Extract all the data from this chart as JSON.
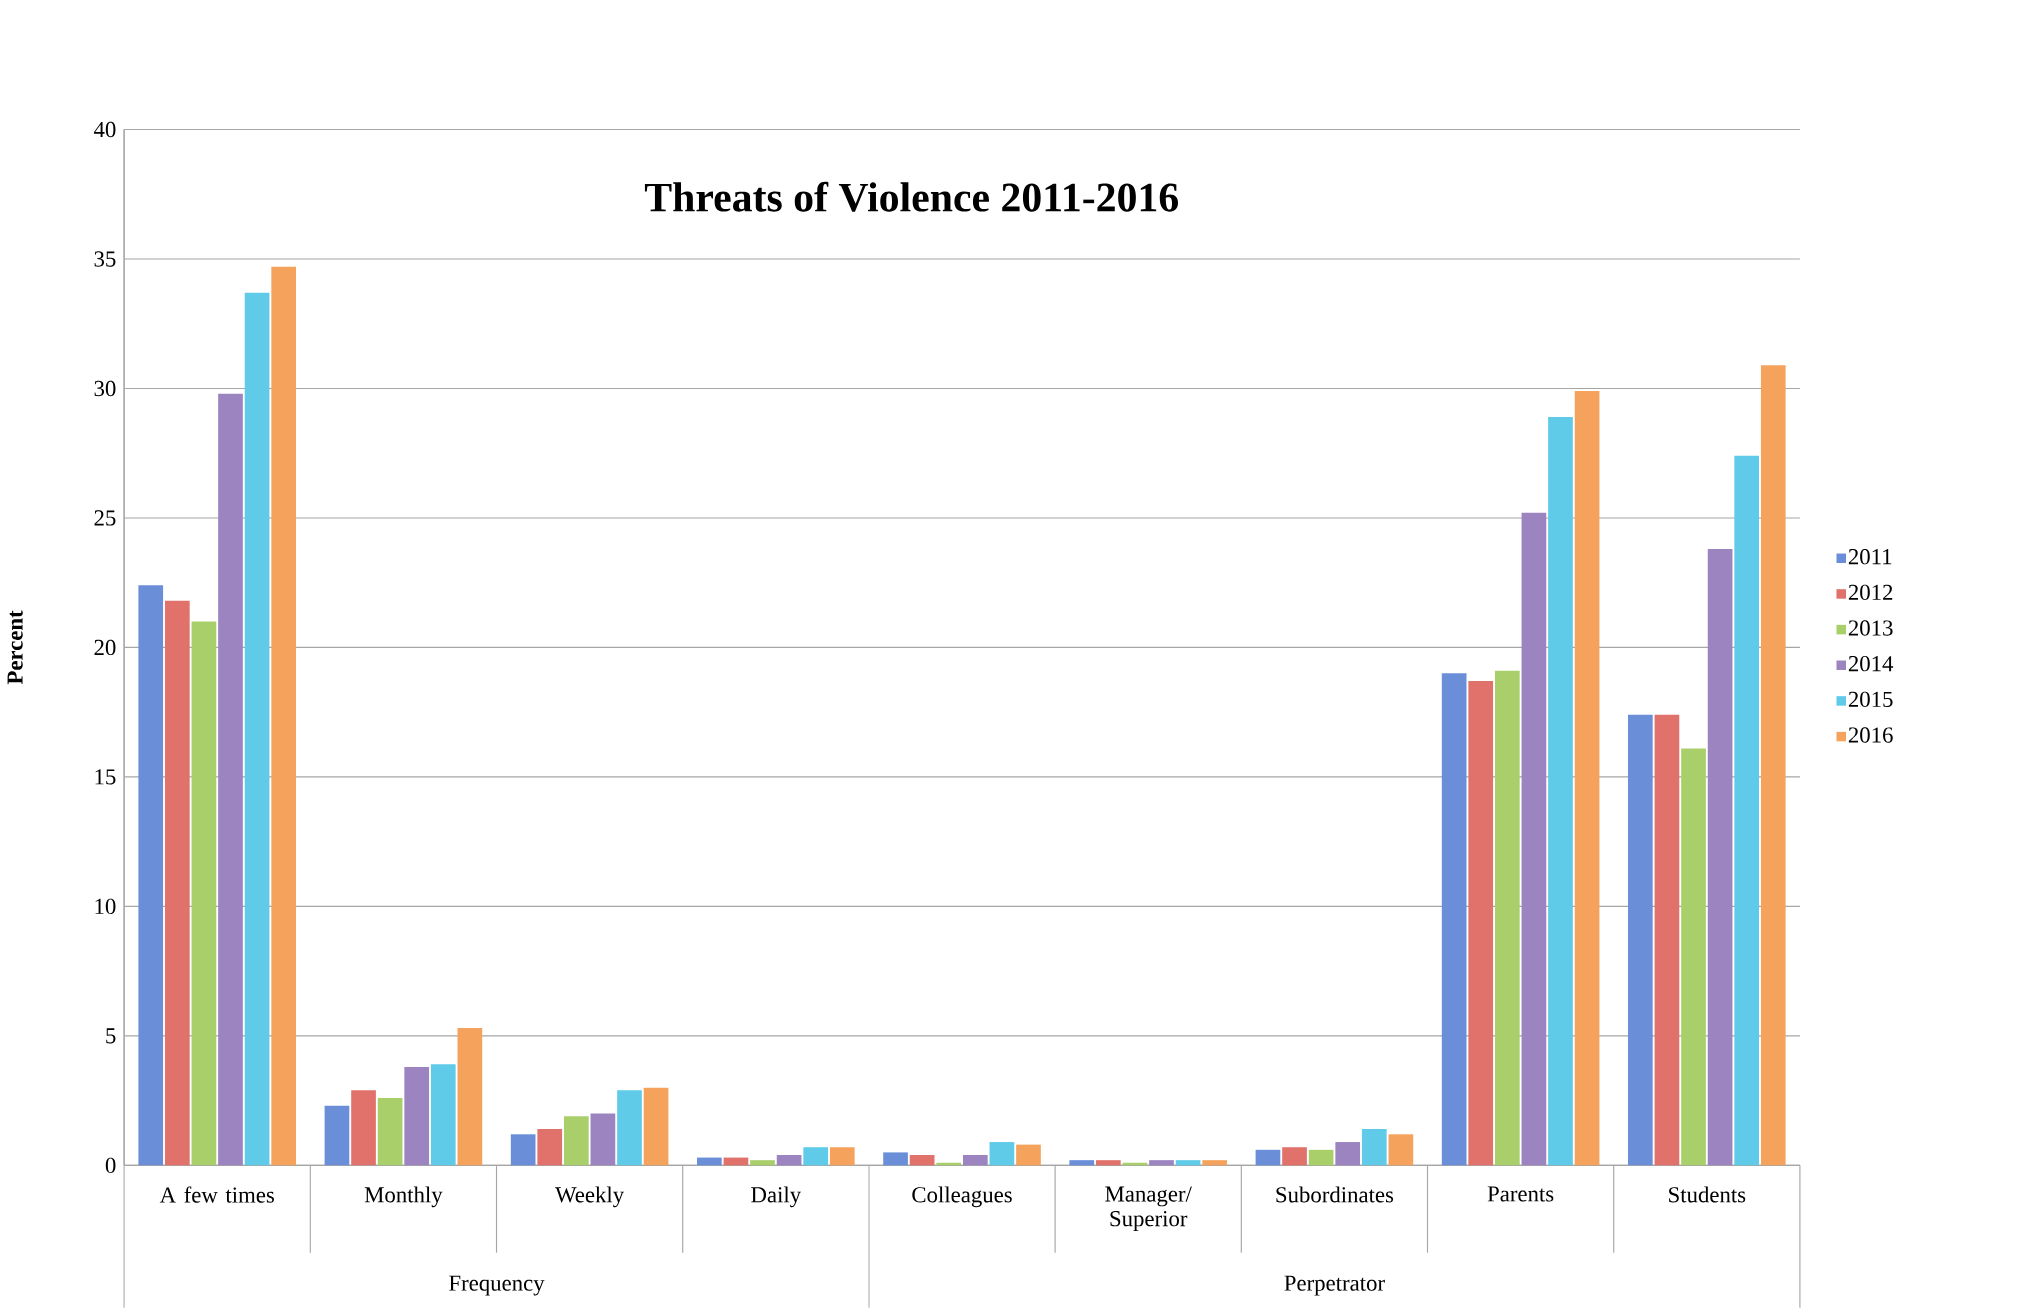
{
  "chart_data": {
    "type": "bar",
    "title": "Threats of Violence 2011-2016",
    "ylabel": "Percent",
    "categories": [
      "A few times",
      "Monthly",
      "Weekly",
      "Daily",
      "Colleagues",
      "Manager/ Superior",
      "Subordinates",
      "Parents",
      "Students"
    ],
    "series": [
      {
        "name": "2011",
        "color": "#6a8fd8",
        "values": [
          22.4,
          2.3,
          1.2,
          0.3,
          0.5,
          0.2,
          0.6,
          19.0,
          17.4
        ]
      },
      {
        "name": "2012",
        "color": "#e0716b",
        "values": [
          21.8,
          2.9,
          1.4,
          0.3,
          0.4,
          0.2,
          0.7,
          18.7,
          17.4
        ]
      },
      {
        "name": "2013",
        "color": "#a9cf6a",
        "values": [
          21.0,
          2.6,
          1.9,
          0.2,
          0.1,
          0.1,
          0.6,
          19.1,
          16.1
        ]
      },
      {
        "name": "2014",
        "color": "#9b84c0",
        "values": [
          29.8,
          3.8,
          2.0,
          0.4,
          0.4,
          0.2,
          0.9,
          25.2,
          23.8
        ]
      },
      {
        "name": "2015",
        "color": "#5fcbe8",
        "values": [
          33.7,
          3.9,
          2.9,
          0.7,
          0.9,
          0.2,
          1.4,
          28.9,
          27.4
        ]
      },
      {
        "name": "2016",
        "color": "#f5a35c",
        "values": [
          34.7,
          5.3,
          3.0,
          0.7,
          0.8,
          0.2,
          1.2,
          29.9,
          30.9
        ]
      }
    ],
    "ylim": [
      0,
      40
    ],
    "yticks": [
      0,
      5,
      10,
      15,
      20,
      25,
      30,
      35,
      40
    ],
    "grid": "y",
    "legend": "right",
    "annotations": [
      "Frequency",
      "Perpetrator"
    ]
  }
}
